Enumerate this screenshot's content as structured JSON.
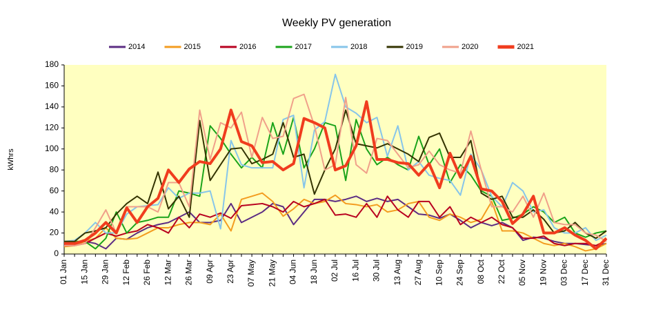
{
  "chart_data": {
    "type": "line",
    "title": "Weekly PV generation",
    "y_label": "kWhrs",
    "categories": [
      "01 Jan",
      null,
      "15 Jan",
      null,
      "29 Jan",
      null,
      "12 Feb",
      null,
      "26 Feb",
      null,
      "12 Mar",
      null,
      "26 Mar",
      null,
      "09 Apr",
      null,
      "23 Apr",
      null,
      "07 May",
      null,
      "21 May",
      null,
      "04 Jun",
      null,
      "18 Jun",
      null,
      "02 Jul",
      null,
      "16 Jul",
      null,
      "30 Jul",
      null,
      "13 Aug",
      null,
      "27 Aug",
      null,
      "10 Sep",
      null,
      "24 Sep",
      null,
      "08 Oct",
      null,
      "22 Oct",
      null,
      "05 Nov",
      null,
      "19 Nov",
      null,
      "03 Dec",
      null,
      "17 Dec",
      null,
      "31 Dec"
    ],
    "series": [
      {
        "name": "2014",
        "color": "#5b2c83",
        "width": 2,
        "values": [
          10,
          10,
          12,
          10,
          5,
          15,
          14,
          20,
          25,
          28,
          30,
          35,
          40,
          30,
          30,
          32,
          48,
          30,
          35,
          40,
          48,
          45,
          28,
          40,
          52,
          52,
          50,
          52,
          55,
          50,
          53,
          50,
          52,
          45,
          38,
          37,
          34,
          38,
          32,
          25,
          30,
          27,
          30,
          25,
          13,
          16,
          15,
          12,
          10,
          10,
          9,
          8,
          10
        ]
      },
      {
        "name": "2015",
        "color": "#f39c1f",
        "width": 2,
        "values": [
          7,
          8,
          12,
          15,
          25,
          15,
          14,
          15,
          20,
          25,
          25,
          28,
          30,
          30,
          28,
          38,
          22,
          52,
          55,
          58,
          50,
          36,
          43,
          52,
          48,
          50,
          56,
          48,
          47,
          45,
          47,
          40,
          42,
          48,
          50,
          35,
          32,
          38,
          35,
          30,
          33,
          50,
          22,
          22,
          20,
          15,
          10,
          8,
          10,
          7,
          3,
          5,
          10
        ]
      },
      {
        "name": "2016",
        "color": "#b8001f",
        "width": 2,
        "values": [
          8,
          8,
          10,
          15,
          20,
          17,
          20,
          22,
          28,
          25,
          20,
          35,
          25,
          38,
          35,
          39,
          34,
          46,
          47,
          48,
          45,
          40,
          50,
          45,
          48,
          52,
          37,
          38,
          35,
          48,
          35,
          55,
          42,
          35,
          50,
          50,
          35,
          45,
          28,
          35,
          30,
          35,
          28,
          25,
          15,
          15,
          17,
          10,
          8,
          10,
          10,
          8,
          13
        ]
      },
      {
        "name": "2017",
        "color": "#1aa31a",
        "width": 2,
        "values": [
          12,
          12,
          12,
          5,
          15,
          40,
          20,
          30,
          32,
          35,
          35,
          60,
          58,
          55,
          122,
          110,
          95,
          82,
          92,
          82,
          125,
          95,
          130,
          82,
          100,
          125,
          122,
          70,
          128,
          100,
          85,
          92,
          85,
          80,
          112,
          85,
          100,
          68,
          85,
          75,
          60,
          55,
          32,
          34,
          38,
          45,
          40,
          30,
          35,
          20,
          16,
          20,
          22
        ]
      },
      {
        "name": "2018",
        "color": "#86c5ea",
        "width": 2,
        "values": [
          12,
          13,
          20,
          30,
          20,
          20,
          38,
          45,
          46,
          47,
          63,
          53,
          58,
          58,
          60,
          24,
          108,
          85,
          82,
          82,
          82,
          128,
          132,
          63,
          118,
          126,
          171,
          140,
          134,
          125,
          130,
          93,
          122,
          80,
          88,
          75,
          72,
          70,
          56,
          95,
          80,
          55,
          45,
          68,
          60,
          40,
          42,
          25,
          20,
          20,
          25,
          13,
          18
        ]
      },
      {
        "name": "2019",
        "color": "#333300",
        "width": 2,
        "values": [
          12,
          12,
          20,
          22,
          25,
          38,
          48,
          55,
          48,
          78,
          43,
          55,
          35,
          127,
          70,
          85,
          100,
          101,
          86,
          90,
          95,
          125,
          92,
          95,
          57,
          80,
          100,
          137,
          105,
          103,
          101,
          105,
          100,
          95,
          88,
          111,
          115,
          92,
          92,
          108,
          58,
          52,
          55,
          35,
          35,
          42,
          33,
          20,
          22,
          30,
          20,
          15,
          22
        ]
      },
      {
        "name": "2020",
        "color": "#f0a08a",
        "width": 2,
        "values": [
          8,
          8,
          10,
          25,
          42,
          20,
          45,
          45,
          45,
          40,
          68,
          68,
          45,
          137,
          90,
          125,
          120,
          135,
          92,
          130,
          110,
          112,
          148,
          152,
          122,
          80,
          85,
          149,
          85,
          77,
          110,
          108,
          95,
          82,
          85,
          98,
          85,
          80,
          77,
          117,
          80,
          45,
          45,
          40,
          55,
          35,
          58,
          30,
          28,
          28,
          20,
          18,
          12
        ]
      },
      {
        "name": "2021",
        "color": "#f03c1e",
        "width": 4,
        "values": [
          10,
          10,
          13,
          20,
          30,
          20,
          44,
          30,
          45,
          53,
          80,
          68,
          81,
          88,
          86,
          100,
          137,
          107,
          103,
          87,
          88,
          80,
          86,
          129,
          125,
          120,
          80,
          84,
          103,
          145,
          90,
          90,
          87,
          86,
          75,
          86,
          63,
          96,
          73,
          93,
          62,
          60,
          50,
          29,
          38,
          55,
          20,
          20,
          25,
          18,
          13,
          5,
          15
        ]
      }
    ],
    "ylim": [
      0,
      180
    ],
    "yticks": [
      0,
      20,
      40,
      60,
      80,
      100,
      120,
      140,
      160,
      180
    ],
    "plot_background": "#ffffc0"
  }
}
